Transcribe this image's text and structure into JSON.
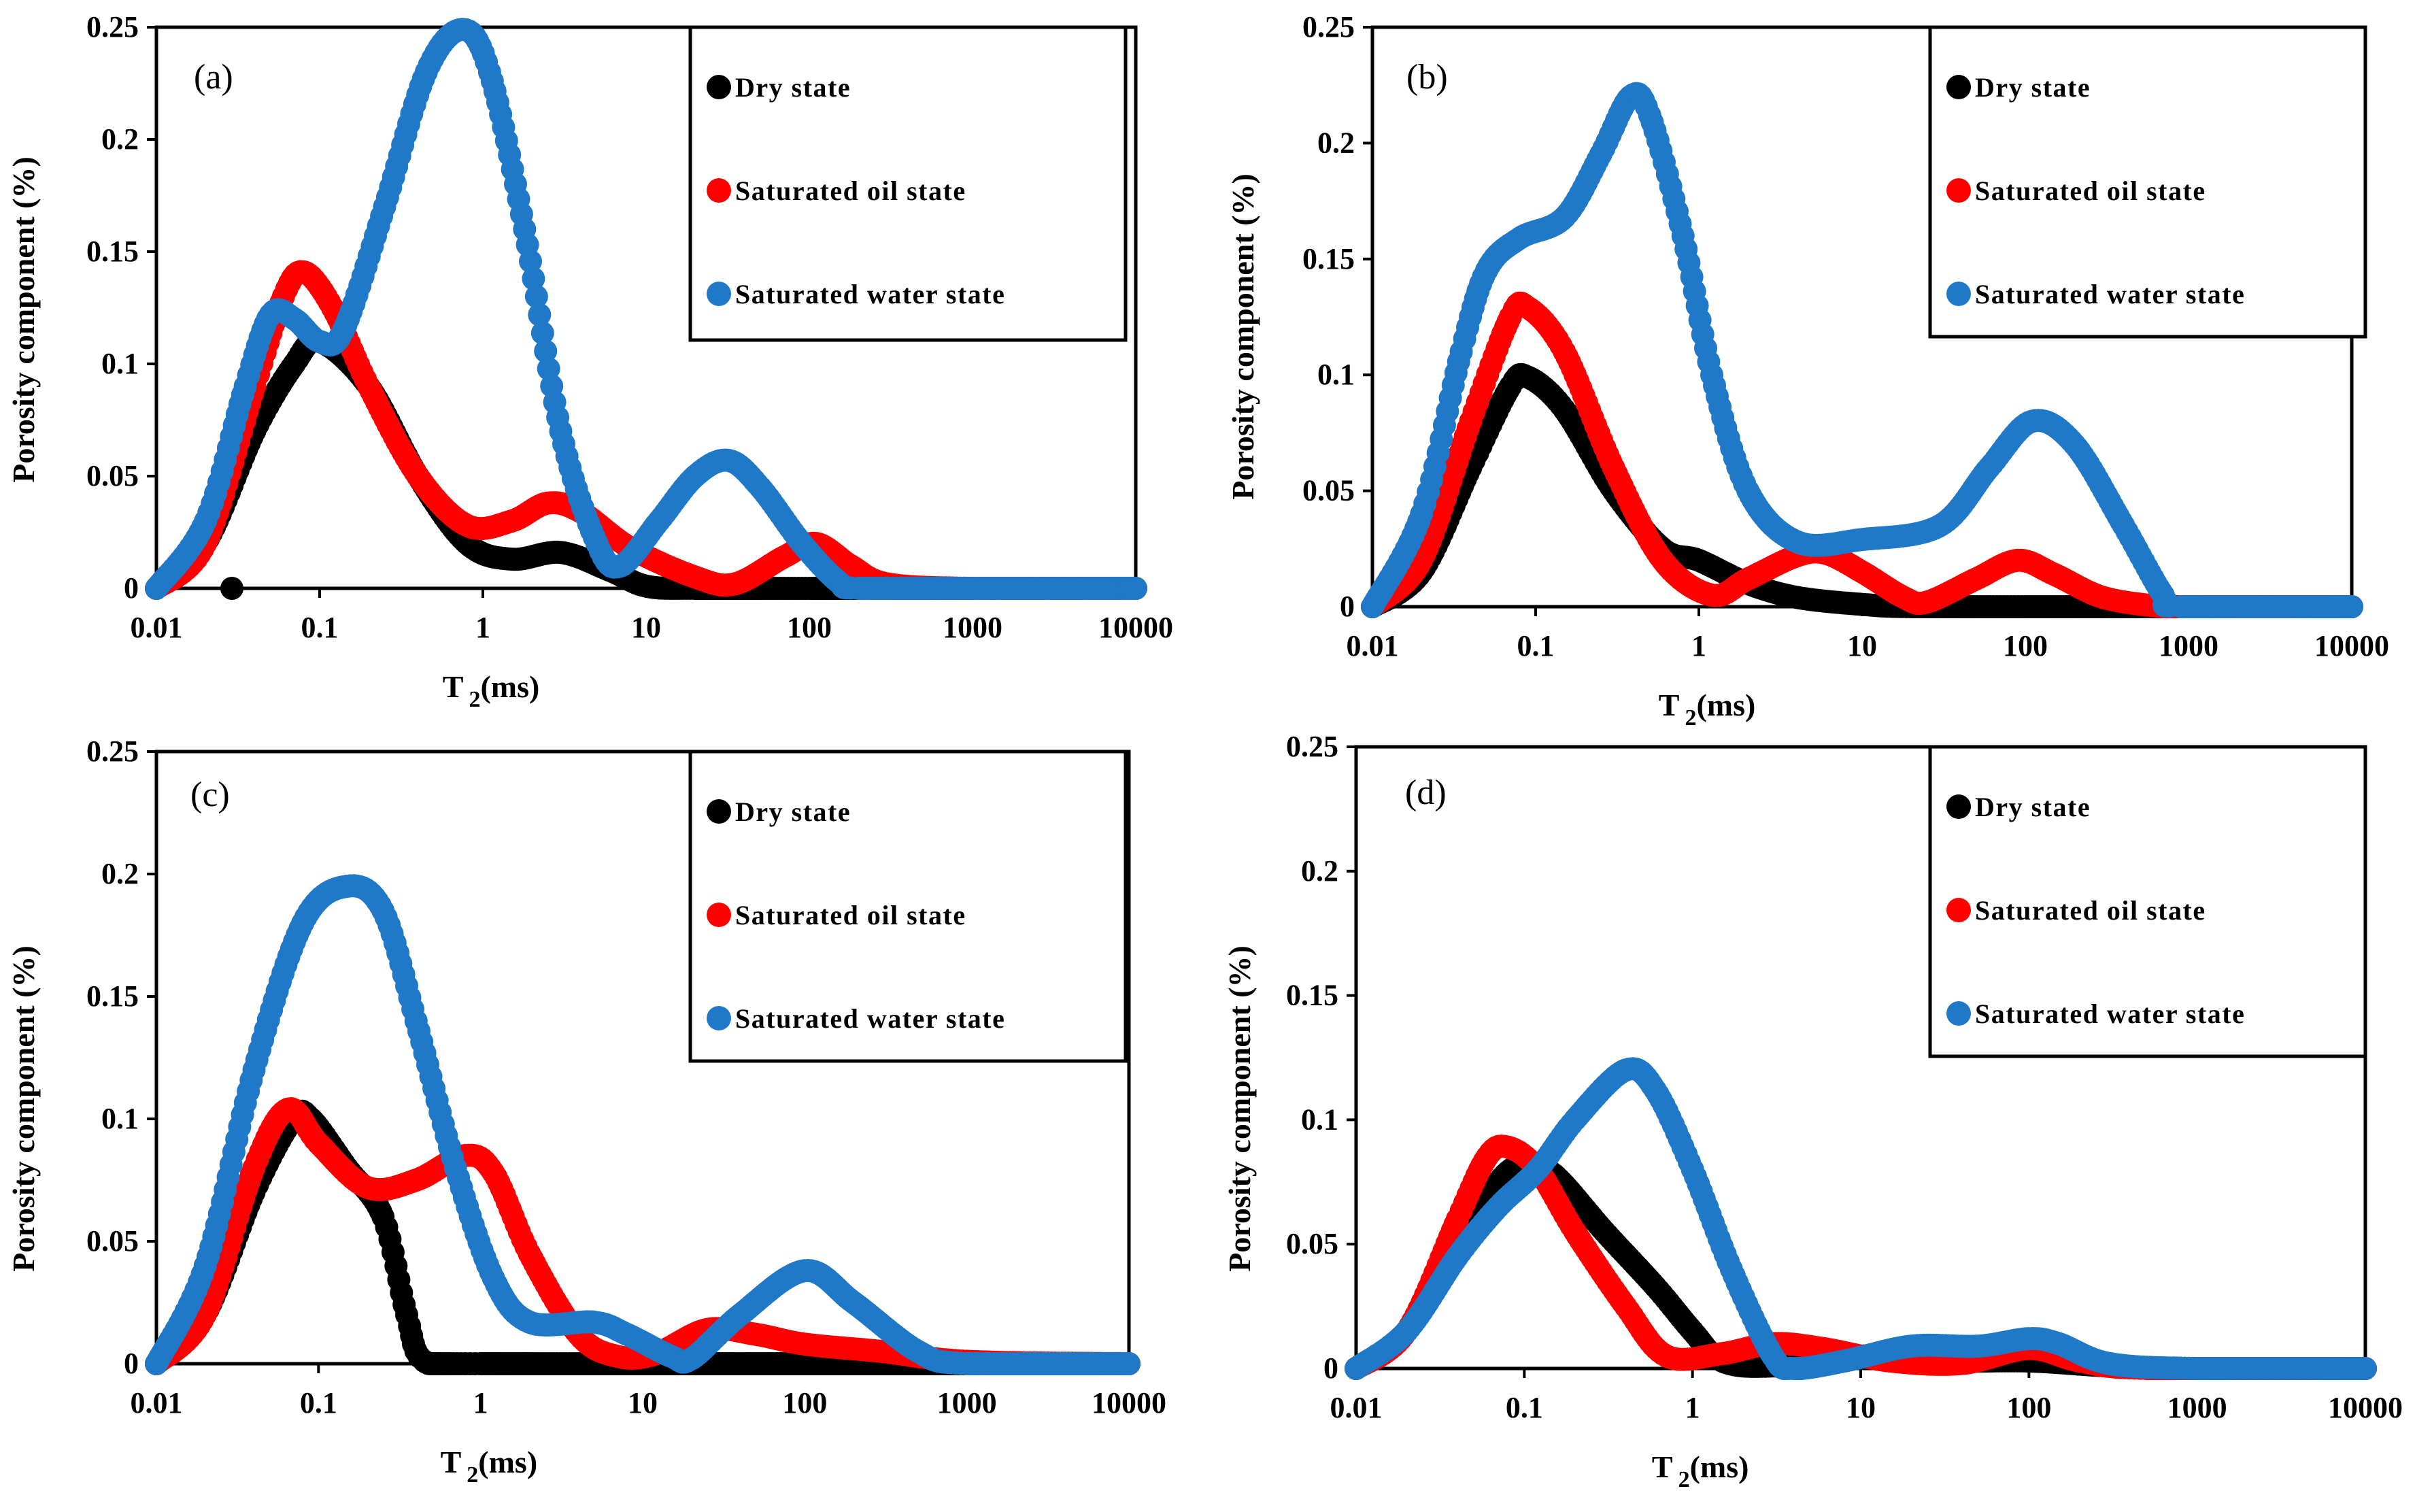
{
  "chart_data": [
    {
      "type": "scatter",
      "panel_label": "(a)",
      "xlabel_main": "T",
      "xlabel_sub": "2",
      "xlabel_unit": "(ms)",
      "ylabel": "Porosity component (%)",
      "xscale": "log",
      "xlim": [
        0.01,
        10000
      ],
      "ylim": [
        0,
        0.25
      ],
      "x_ticks": [
        "0.01",
        "0.1",
        "1",
        "10",
        "100",
        "1000",
        "10000"
      ],
      "y_ticks": [
        "0",
        "0.05",
        "0.1",
        "0.15",
        "0.2",
        "0.25"
      ],
      "legend_position": "top-right",
      "series": [
        {
          "name": "Dry state",
          "color": "#000000",
          "points": [
            [
              0.01,
              0
            ],
            [
              0.02,
              0.02
            ],
            [
              0.04,
              0.07
            ],
            [
              0.07,
              0.1
            ],
            [
              0.1,
              0.11
            ],
            [
              0.2,
              0.09
            ],
            [
              0.4,
              0.05
            ],
            [
              0.8,
              0.02
            ],
            [
              1.5,
              0.013
            ],
            [
              3,
              0.016
            ],
            [
              6,
              0.008
            ],
            [
              10,
              0.001
            ],
            [
              20,
              0
            ],
            [
              100,
              0
            ],
            [
              1000,
              0
            ],
            [
              10000,
              0
            ]
          ]
        },
        {
          "name": "Saturated oil state",
          "color": "#ff0000",
          "points": [
            [
              0.01,
              0
            ],
            [
              0.02,
              0.02
            ],
            [
              0.04,
              0.09
            ],
            [
              0.06,
              0.13
            ],
            [
              0.08,
              0.141
            ],
            [
              0.12,
              0.125
            ],
            [
              0.2,
              0.09
            ],
            [
              0.4,
              0.05
            ],
            [
              0.8,
              0.028
            ],
            [
              1.5,
              0.03
            ],
            [
              2.5,
              0.038
            ],
            [
              4,
              0.034
            ],
            [
              8,
              0.018
            ],
            [
              20,
              0.005
            ],
            [
              35,
              0.002
            ],
            [
              70,
              0.014
            ],
            [
              110,
              0.02
            ],
            [
              180,
              0.01
            ],
            [
              300,
              0.002
            ],
            [
              1000,
              0
            ],
            [
              10000,
              0
            ]
          ]
        },
        {
          "name": "Saturated water state",
          "color": "#1f78c8",
          "points": [
            [
              0.01,
              0
            ],
            [
              0.02,
              0.03
            ],
            [
              0.035,
              0.09
            ],
            [
              0.05,
              0.122
            ],
            [
              0.07,
              0.12
            ],
            [
              0.1,
              0.11
            ],
            [
              0.14,
              0.115
            ],
            [
              0.25,
              0.17
            ],
            [
              0.45,
              0.23
            ],
            [
              0.75,
              0.249
            ],
            [
              1.1,
              0.23
            ],
            [
              1.8,
              0.16
            ],
            [
              3,
              0.07
            ],
            [
              5,
              0.02
            ],
            [
              7,
              0.01
            ],
            [
              12,
              0.03
            ],
            [
              20,
              0.05
            ],
            [
              32,
              0.057
            ],
            [
              50,
              0.045
            ],
            [
              90,
              0.02
            ],
            [
              150,
              0.003
            ],
            [
              200,
              0
            ],
            [
              1000,
              0
            ],
            [
              10000,
              0
            ]
          ]
        }
      ],
      "extra_points": [
        {
          "series": "Dry state",
          "x": 0.029,
          "y": 0
        }
      ]
    },
    {
      "type": "scatter",
      "panel_label": "(b)",
      "xlabel_main": "T",
      "xlabel_sub": "2",
      "xlabel_unit": "(ms)",
      "ylabel": "Porosity component (%)",
      "xscale": "log",
      "xlim": [
        0.01,
        10000
      ],
      "ylim": [
        0,
        0.25
      ],
      "x_ticks": [
        "0.01",
        "0.1",
        "1",
        "10",
        "100",
        "1000",
        "10000"
      ],
      "y_ticks": [
        "0",
        "0.05",
        "0.1",
        "0.15",
        "0.2",
        "0.25"
      ],
      "legend_position": "top-right",
      "series": [
        {
          "name": "Dry state",
          "color": "#000000",
          "points": [
            [
              0.01,
              0
            ],
            [
              0.02,
              0.015
            ],
            [
              0.04,
              0.06
            ],
            [
              0.07,
              0.095
            ],
            [
              0.09,
              0.099
            ],
            [
              0.15,
              0.085
            ],
            [
              0.3,
              0.05
            ],
            [
              0.6,
              0.025
            ],
            [
              1,
              0.02
            ],
            [
              2,
              0.01
            ],
            [
              4,
              0.004
            ],
            [
              10,
              0.001
            ],
            [
              20,
              0
            ],
            [
              100,
              0
            ],
            [
              1000,
              0
            ],
            [
              10000,
              0
            ]
          ]
        },
        {
          "name": "Saturated oil state",
          "color": "#ff0000",
          "points": [
            [
              0.01,
              0
            ],
            [
              0.02,
              0.02
            ],
            [
              0.04,
              0.08
            ],
            [
              0.07,
              0.125
            ],
            [
              0.09,
              0.129
            ],
            [
              0.15,
              0.11
            ],
            [
              0.3,
              0.06
            ],
            [
              0.6,
              0.02
            ],
            [
              1.2,
              0.005
            ],
            [
              2,
              0.012
            ],
            [
              4,
              0.022
            ],
            [
              6,
              0.023
            ],
            [
              10,
              0.015
            ],
            [
              18,
              0.004
            ],
            [
              25,
              0.002
            ],
            [
              50,
              0.012
            ],
            [
              90,
              0.02
            ],
            [
              150,
              0.014
            ],
            [
              300,
              0.004
            ],
            [
              700,
              0
            ],
            [
              1000,
              0
            ],
            [
              10000,
              0
            ]
          ]
        },
        {
          "name": "Saturated water state",
          "color": "#1f78c8",
          "points": [
            [
              0.01,
              0
            ],
            [
              0.02,
              0.04
            ],
            [
              0.035,
              0.11
            ],
            [
              0.05,
              0.145
            ],
            [
              0.08,
              0.159
            ],
            [
              0.15,
              0.168
            ],
            [
              0.25,
              0.195
            ],
            [
              0.38,
              0.22
            ],
            [
              0.5,
              0.212
            ],
            [
              0.8,
              0.16
            ],
            [
              1.2,
              0.1
            ],
            [
              2,
              0.05
            ],
            [
              4,
              0.028
            ],
            [
              10,
              0.029
            ],
            [
              30,
              0.035
            ],
            [
              60,
              0.06
            ],
            [
              110,
              0.08
            ],
            [
              200,
              0.07
            ],
            [
              400,
              0.035
            ],
            [
              700,
              0.005
            ],
            [
              900,
              0
            ],
            [
              10000,
              0
            ]
          ]
        }
      ]
    },
    {
      "type": "scatter",
      "panel_label": "(c)",
      "xlabel_main": "T",
      "xlabel_sub": "2",
      "xlabel_unit": "(ms)",
      "ylabel": "Porosity component (%)",
      "xscale": "log",
      "xlim": [
        0.01,
        10000
      ],
      "ylim": [
        0,
        0.25
      ],
      "x_ticks": [
        "0.01",
        "0.1",
        "1",
        "10",
        "100",
        "1000",
        "10000"
      ],
      "y_ticks": [
        "0",
        "0.05",
        "0.1",
        "0.15",
        "0.2",
        "0.25"
      ],
      "legend_position": "top-right",
      "series": [
        {
          "name": "Dry state",
          "color": "#000000",
          "points": [
            [
              0.01,
              0
            ],
            [
              0.02,
              0.02
            ],
            [
              0.04,
              0.07
            ],
            [
              0.07,
              0.1
            ],
            [
              0.09,
              0.1
            ],
            [
              0.15,
              0.08
            ],
            [
              0.25,
              0.06
            ],
            [
              0.35,
              0.02
            ],
            [
              0.45,
              0.001
            ],
            [
              1,
              0
            ],
            [
              10,
              0
            ],
            [
              100,
              0
            ],
            [
              1000,
              0
            ],
            [
              10000,
              0
            ]
          ]
        },
        {
          "name": "Saturated oil state",
          "color": "#ff0000",
          "points": [
            [
              0.01,
              0
            ],
            [
              0.02,
              0.02
            ],
            [
              0.04,
              0.08
            ],
            [
              0.065,
              0.104
            ],
            [
              0.1,
              0.09
            ],
            [
              0.2,
              0.072
            ],
            [
              0.4,
              0.075
            ],
            [
              0.8,
              0.085
            ],
            [
              1.2,
              0.078
            ],
            [
              2,
              0.045
            ],
            [
              4,
              0.012
            ],
            [
              7,
              0.003
            ],
            [
              12,
              0.004
            ],
            [
              25,
              0.014
            ],
            [
              50,
              0.012
            ],
            [
              100,
              0.008
            ],
            [
              300,
              0.005
            ],
            [
              1000,
              0.001
            ],
            [
              10000,
              0
            ]
          ]
        },
        {
          "name": "Saturated water state",
          "color": "#1f78c8",
          "points": [
            [
              0.01,
              0
            ],
            [
              0.02,
              0.04
            ],
            [
              0.04,
              0.12
            ],
            [
              0.08,
              0.18
            ],
            [
              0.15,
              0.195
            ],
            [
              0.25,
              0.185
            ],
            [
              0.4,
              0.14
            ],
            [
              0.7,
              0.08
            ],
            [
              1.2,
              0.035
            ],
            [
              2,
              0.017
            ],
            [
              5,
              0.017
            ],
            [
              8,
              0.012
            ],
            [
              15,
              0.003
            ],
            [
              20,
              0.002
            ],
            [
              40,
              0.02
            ],
            [
              100,
              0.038
            ],
            [
              200,
              0.025
            ],
            [
              500,
              0.005
            ],
            [
              1000,
              0
            ],
            [
              10000,
              0
            ]
          ]
        }
      ]
    },
    {
      "type": "scatter",
      "panel_label": "(d)",
      "xlabel_main": "T",
      "xlabel_sub": "2",
      "xlabel_unit": "(ms)",
      "ylabel": "Porosity component (%)",
      "xscale": "log",
      "xlim": [
        0.01,
        10000
      ],
      "ylim": [
        0,
        0.25
      ],
      "x_ticks": [
        "0.01",
        "0.1",
        "1",
        "10",
        "100",
        "1000",
        "10000"
      ],
      "y_ticks": [
        "0",
        "0.05",
        "0.1",
        "0.15",
        "0.2",
        "0.25"
      ],
      "legend_position": "top-right",
      "series": [
        {
          "name": "Dry state",
          "color": "#000000",
          "points": [
            [
              0.01,
              0
            ],
            [
              0.02,
              0.015
            ],
            [
              0.04,
              0.05
            ],
            [
              0.07,
              0.075
            ],
            [
              0.1,
              0.082
            ],
            [
              0.15,
              0.078
            ],
            [
              0.3,
              0.055
            ],
            [
              0.6,
              0.033
            ],
            [
              1,
              0.015
            ],
            [
              1.5,
              0.003
            ],
            [
              3,
              0.001
            ],
            [
              10,
              0.005
            ],
            [
              30,
              0.003
            ],
            [
              100,
              0.003
            ],
            [
              300,
              0.001
            ],
            [
              1000,
              0
            ],
            [
              10000,
              0
            ]
          ]
        },
        {
          "name": "Saturated oil state",
          "color": "#ff0000",
          "points": [
            [
              0.01,
              0
            ],
            [
              0.02,
              0.015
            ],
            [
              0.04,
              0.06
            ],
            [
              0.06,
              0.085
            ],
            [
              0.08,
              0.089
            ],
            [
              0.12,
              0.08
            ],
            [
              0.2,
              0.055
            ],
            [
              0.4,
              0.025
            ],
            [
              0.7,
              0.005
            ],
            [
              1.5,
              0.006
            ],
            [
              3,
              0.01
            ],
            [
              6,
              0.008
            ],
            [
              15,
              0.003
            ],
            [
              40,
              0.002
            ],
            [
              100,
              0.008
            ],
            [
              200,
              0.003
            ],
            [
              500,
              0
            ],
            [
              10000,
              0
            ]
          ]
        },
        {
          "name": "Saturated water state",
          "color": "#1f78c8",
          "points": [
            [
              0.01,
              0
            ],
            [
              0.02,
              0.015
            ],
            [
              0.04,
              0.045
            ],
            [
              0.07,
              0.065
            ],
            [
              0.12,
              0.08
            ],
            [
              0.2,
              0.1
            ],
            [
              0.4,
              0.12
            ],
            [
              0.6,
              0.112
            ],
            [
              1,
              0.08
            ],
            [
              1.7,
              0.04
            ],
            [
              3,
              0.005
            ],
            [
              4,
              0
            ],
            [
              8,
              0.003
            ],
            [
              20,
              0.009
            ],
            [
              50,
              0.009
            ],
            [
              100,
              0.012
            ],
            [
              150,
              0.01
            ],
            [
              300,
              0.002
            ],
            [
              1000,
              0
            ],
            [
              10000,
              0
            ]
          ]
        }
      ]
    }
  ]
}
